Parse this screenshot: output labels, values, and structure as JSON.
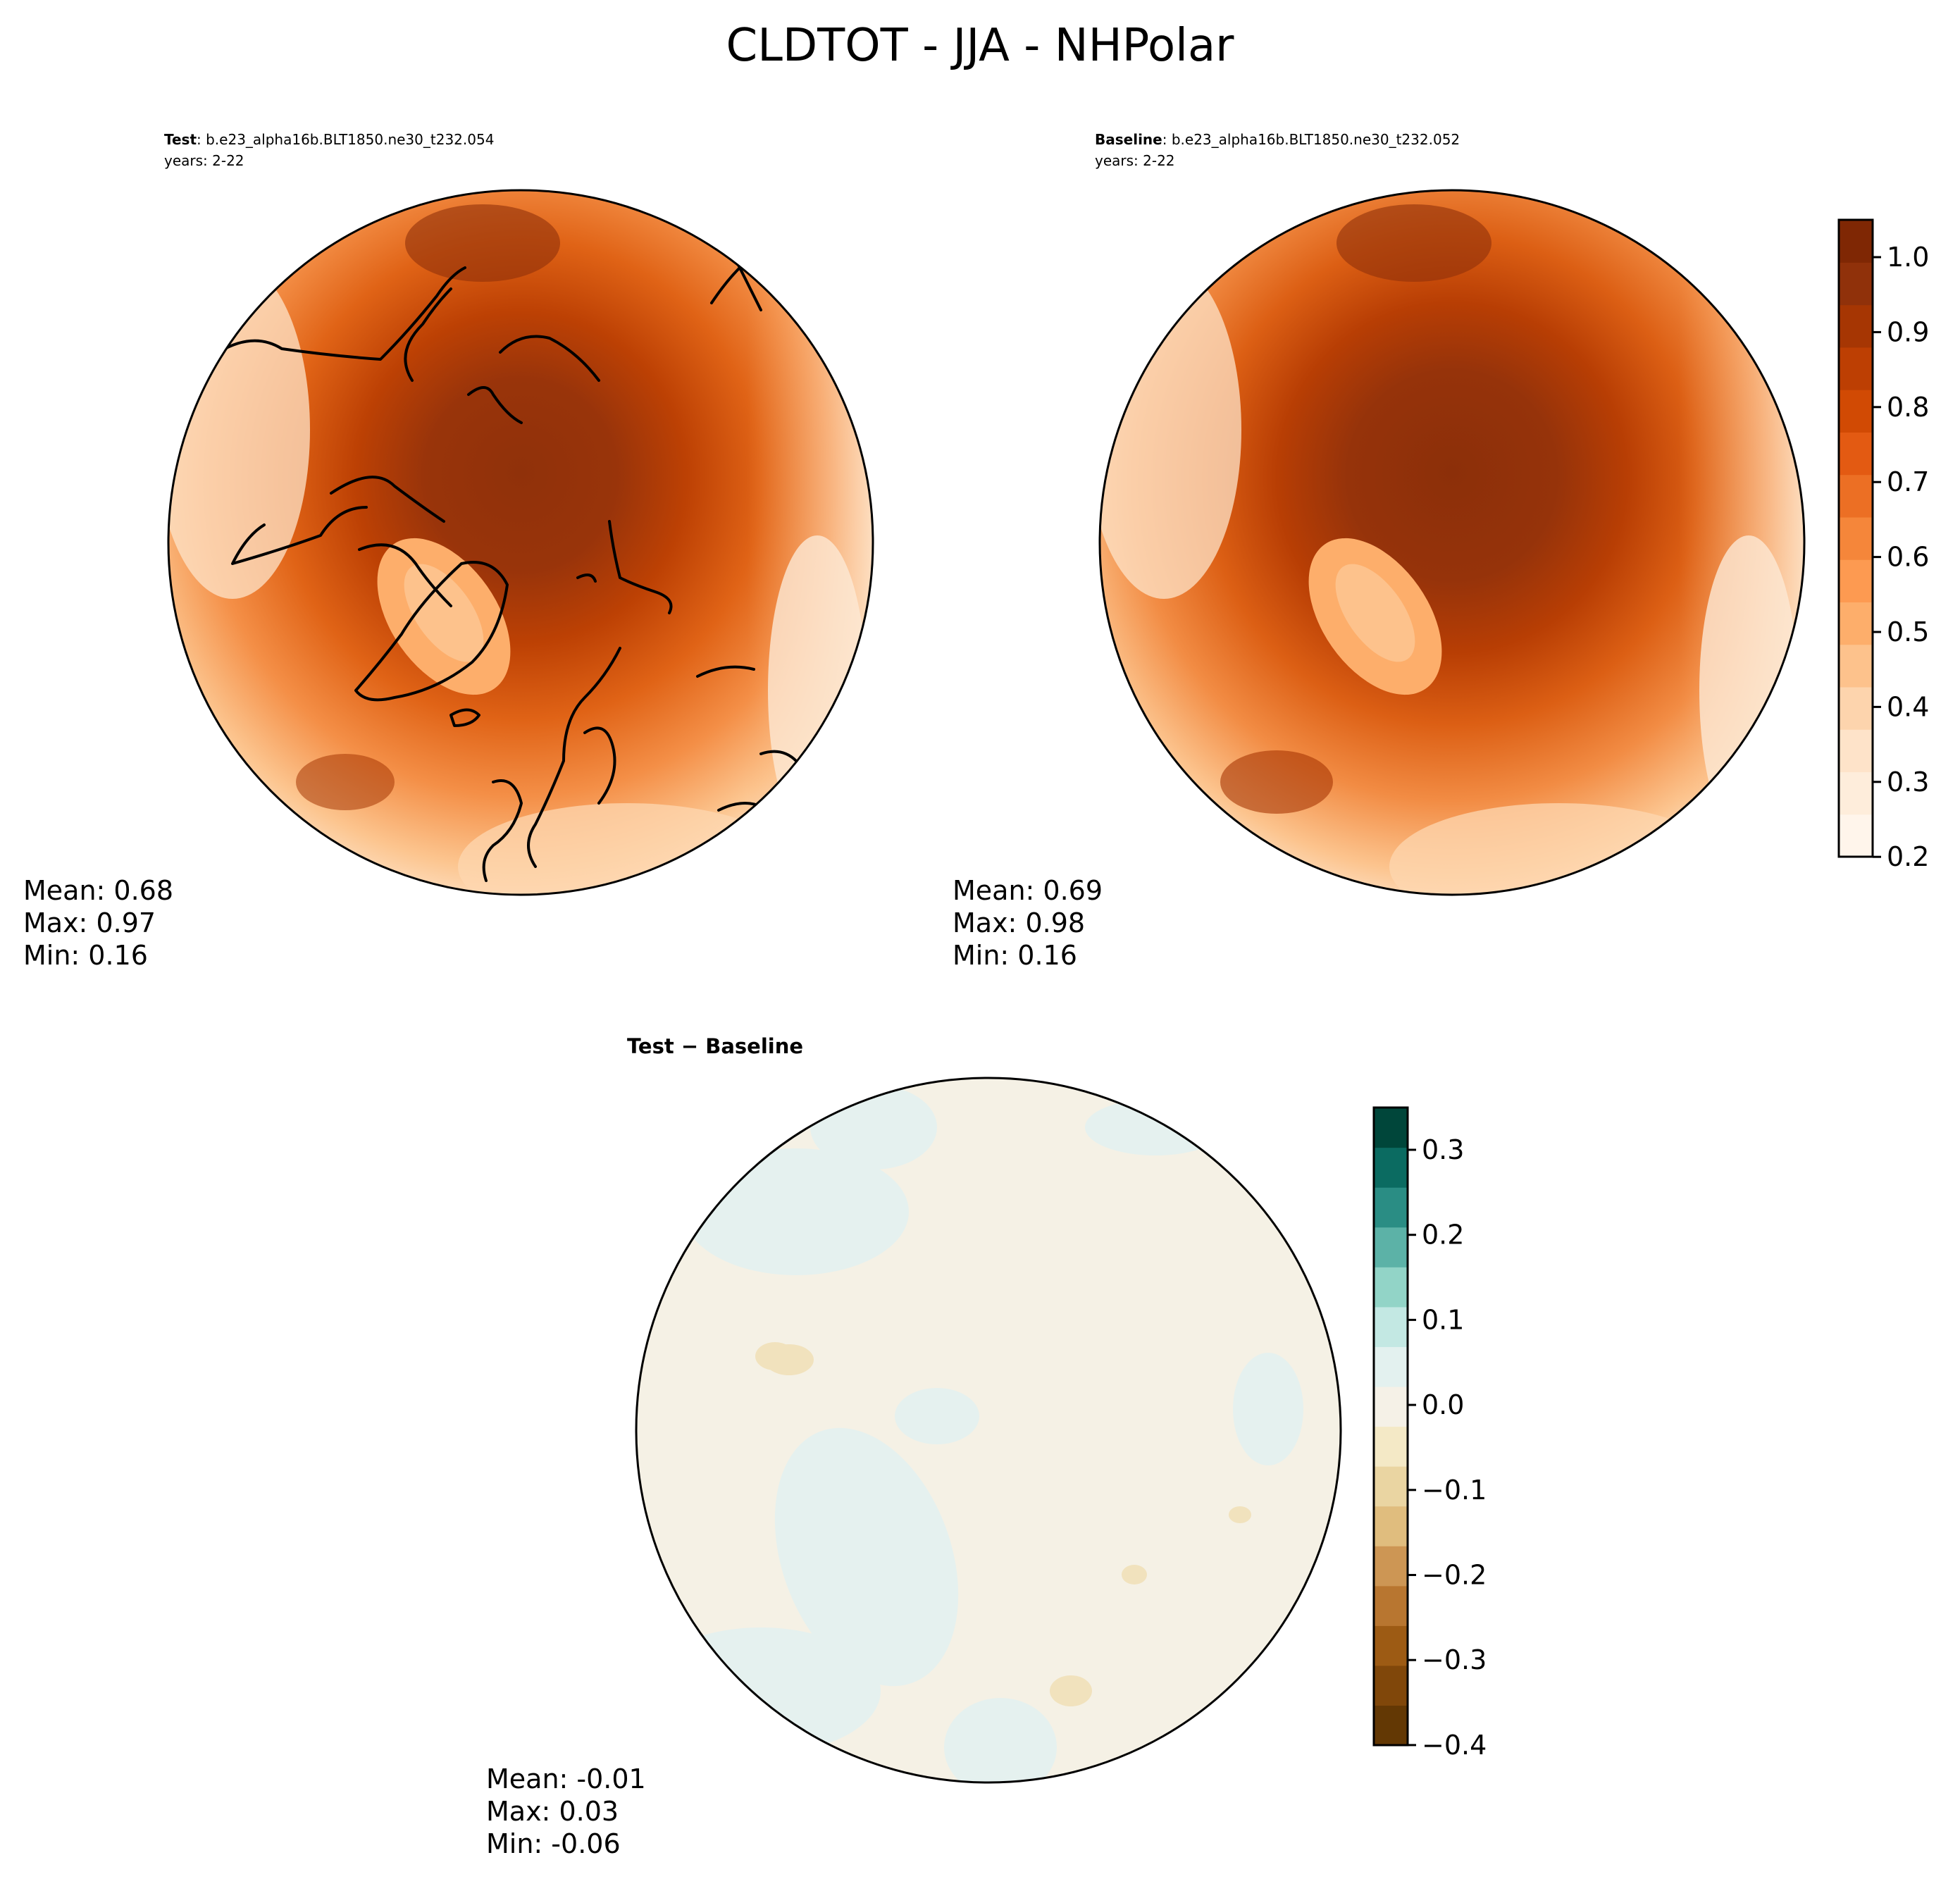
{
  "figure": {
    "title": "CLDTOT - JJA - NHPolar"
  },
  "panels": {
    "test": {
      "label_bold": "Test",
      "label_rest": ": b.e23_alpha16b.BLT1850.ne30_t232.054",
      "years": "years: 2-22",
      "stats": {
        "mean": "Mean:  0.68",
        "max": "Max:  0.97",
        "min": "Min:  0.16"
      }
    },
    "baseline": {
      "label_bold": "Baseline",
      "label_rest": ": b.e23_alpha16b.BLT1850.ne30_t232.052",
      "years": "years: 2-22",
      "stats": {
        "mean": "Mean:  0.69",
        "max": "Max:  0.98",
        "min": "Min:  0.16"
      }
    },
    "diff": {
      "label": "Test − Baseline",
      "stats": {
        "mean": "Mean: -0.01",
        "max": "Max:  0.03",
        "min": "Min: -0.06"
      }
    }
  },
  "colorbars": {
    "main": {
      "ticks": [
        "1.0",
        "0.9",
        "0.8",
        "0.7",
        "0.6",
        "0.5",
        "0.4",
        "0.3",
        "0.2"
      ],
      "colors": [
        "#fff5eb",
        "#feeddb",
        "#fee3c9",
        "#fdd4ad",
        "#fdc28c",
        "#fdae6b",
        "#fd9a51",
        "#f5863a",
        "#ec6f24",
        "#e35a12",
        "#d14a04",
        "#bd3f03",
        "#a63603",
        "#90310a",
        "#7f2704"
      ]
    },
    "diff": {
      "ticks": [
        "0.3",
        "0.2",
        "0.1",
        "0.0",
        "−0.1",
        "−0.2",
        "−0.3",
        "−0.4"
      ],
      "colors": [
        "#633804",
        "#80470a",
        "#9d5b14",
        "#b87630",
        "#cd9654",
        "#e0bd7e",
        "#ead5a2",
        "#f4e9c6",
        "#f5f1e7",
        "#e3f1ef",
        "#c3e8e3",
        "#92d4c7",
        "#5cb2a7",
        "#2a8d84",
        "#0b6b61",
        "#00463a"
      ]
    },
    "field_colors": {
      "test_and_baseline_range": [
        0.2,
        1.05
      ],
      "diff_background": "#f5f1e5",
      "diff_positive": "#e5f1ef",
      "diff_negative": "#f1e2bd"
    }
  }
}
